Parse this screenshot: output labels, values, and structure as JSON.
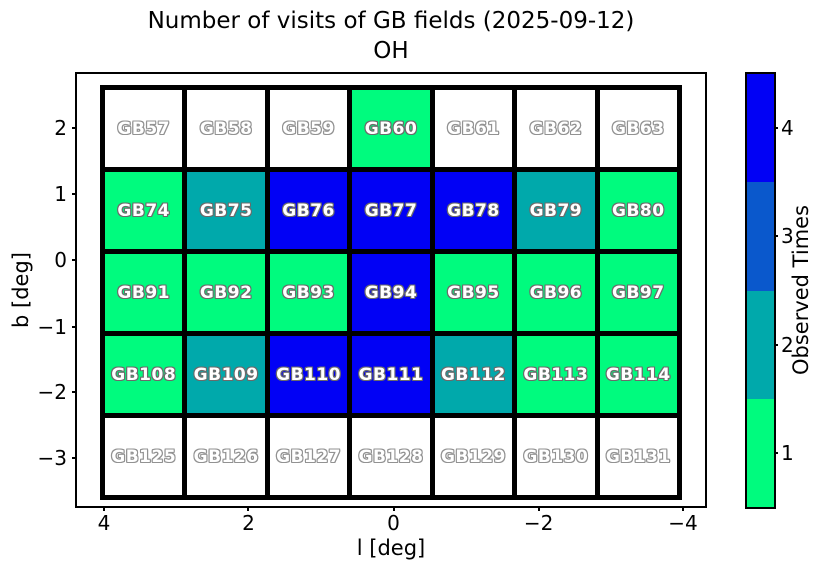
{
  "figure": {
    "title_line1": "Number of visits of GB fields (2025-09-12)",
    "title_line2": "OH"
  },
  "axes": {
    "xlabel": "l [deg]",
    "ylabel": "b [deg]",
    "x_tick_labels": [
      "4",
      "2",
      "0",
      "−2",
      "−4"
    ],
    "y_tick_labels": [
      "2",
      "1",
      "0",
      "−1",
      "−2",
      "−3"
    ]
  },
  "colorbar": {
    "label": "Observed Times",
    "segments_top_to_bottom": [
      {
        "value": "4",
        "color": "#0101f5"
      },
      {
        "value": "3",
        "color": "#0a58cc"
      },
      {
        "value": "2",
        "color": "#00a9ab"
      },
      {
        "value": "1",
        "color": "#00fb7e"
      }
    ]
  },
  "chart_data": {
    "type": "heatmap",
    "title": "Number of visits of GB fields (2025-09-12)",
    "subtitle": "OH",
    "xlabel": "l [deg]",
    "ylabel": "b [deg]",
    "x_axis_inverted": true,
    "x_tick_values": [
      4,
      2,
      0,
      -2,
      -4
    ],
    "y_tick_values": [
      2,
      1,
      0,
      -1,
      -2,
      -3
    ],
    "colorbar_label": "Observed Times",
    "colorbar_ticks": [
      1,
      2,
      3,
      4
    ],
    "value_colors": {
      "0": "#ffffff",
      "1": "#00fb7e",
      "2": "#00a9ab",
      "3": "#0a58cc",
      "4": "#0101f5"
    },
    "grid": [
      {
        "fields": [
          "GB57",
          "GB58",
          "GB59",
          "GB60",
          "GB61",
          "GB62",
          "GB63"
        ],
        "visits": [
          0,
          0,
          0,
          1,
          0,
          0,
          0
        ]
      },
      {
        "fields": [
          "GB74",
          "GB75",
          "GB76",
          "GB77",
          "GB78",
          "GB79",
          "GB80"
        ],
        "visits": [
          1,
          2,
          4,
          4,
          4,
          2,
          1
        ]
      },
      {
        "fields": [
          "GB91",
          "GB92",
          "GB93",
          "GB94",
          "GB95",
          "GB96",
          "GB97"
        ],
        "visits": [
          1,
          1,
          1,
          4,
          1,
          1,
          1
        ]
      },
      {
        "fields": [
          "GB108",
          "GB109",
          "GB110",
          "GB111",
          "GB112",
          "GB113",
          "GB114"
        ],
        "visits": [
          1,
          2,
          4,
          4,
          2,
          1,
          1
        ]
      },
      {
        "fields": [
          "GB125",
          "GB126",
          "GB127",
          "GB128",
          "GB129",
          "GB130",
          "GB131"
        ],
        "visits": [
          0,
          0,
          0,
          0,
          0,
          0,
          0
        ]
      }
    ]
  }
}
